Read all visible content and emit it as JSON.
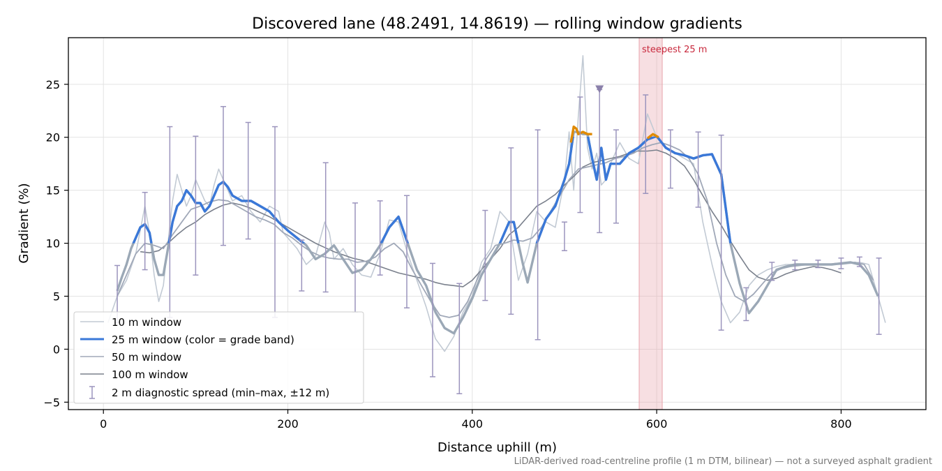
{
  "chart_data": {
    "type": "line",
    "title": "Discovered lane (48.2491, 14.8619) — rolling window gradients",
    "xlabel": "Distance uphill (m)",
    "ylabel": "Gradient (%)",
    "xlim": [
      -38,
      892
    ],
    "ylim": [
      -5.7,
      29.4
    ],
    "xticks": [
      0,
      200,
      400,
      600,
      800
    ],
    "yticks": [
      -5,
      0,
      5,
      10,
      15,
      20,
      25
    ],
    "ytick_labels": [
      "−5",
      "0",
      "5",
      "10",
      "15",
      "20",
      "25"
    ],
    "grid": true,
    "legend_position": "lower-left",
    "footnote": "LiDAR-derived road-centreline profile (1 m DTM, bilinear) — not a surveyed asphalt gradient",
    "colors": {
      "w10": "#c2cad4",
      "w25_base": "#9ba8b6",
      "w25_blue": "#3a78d8",
      "w25_orange": "#e08a00",
      "w50": "#a0a8b8",
      "w100": "#7a808c",
      "diag": "#9b94bd",
      "steep": "#e8a4ab",
      "steep_text": "#c8283c",
      "marker": "#8a80aa"
    },
    "steepest_25m": {
      "label": "steepest 25 m",
      "x_start": 581,
      "x_end": 606
    },
    "max_marker": {
      "x": 538,
      "y": 24.5
    },
    "series": [
      {
        "name": "10 m window",
        "x": [
          5,
          15,
          25,
          35,
          45,
          50,
          55,
          60,
          65,
          70,
          75,
          80,
          85,
          90,
          95,
          100,
          105,
          110,
          115,
          120,
          125,
          130,
          135,
          140,
          150,
          160,
          170,
          180,
          190,
          195,
          200,
          210,
          220,
          230,
          240,
          245,
          250,
          255,
          260,
          270,
          280,
          290,
          300,
          310,
          320,
          330,
          340,
          350,
          360,
          370,
          380,
          390,
          400,
          410,
          420,
          430,
          440,
          450,
          460,
          470,
          480,
          490,
          500,
          505,
          510,
          515,
          520,
          525,
          530,
          535,
          540,
          545,
          550,
          560,
          570,
          580,
          590,
          600,
          610,
          620,
          630,
          640,
          650,
          660,
          670,
          680,
          690,
          700,
          710,
          720,
          730,
          740,
          750,
          760,
          770,
          780,
          790,
          800,
          810,
          820,
          830,
          840,
          848
        ],
        "y": [
          2.5,
          5,
          6.5,
          9,
          13.5,
          11,
          7,
          4.5,
          6,
          10,
          14,
          16.5,
          15,
          13.5,
          14.5,
          16,
          15,
          14,
          13.5,
          15.5,
          17,
          16,
          15,
          14,
          14.5,
          13,
          12,
          13.5,
          13,
          11,
          10.5,
          9.5,
          8,
          8.8,
          12,
          11,
          8.5,
          9,
          9.5,
          8,
          7,
          6.8,
          9,
          12.2,
          12,
          9,
          6.5,
          4,
          1,
          -0.2,
          1.2,
          3.5,
          5,
          8.2,
          9.5,
          13,
          12,
          6.5,
          9,
          13,
          12,
          11.5,
          16,
          20.5,
          15,
          22,
          27.7,
          19,
          17,
          18.5,
          15.5,
          16,
          17.5,
          19.5,
          18,
          17.5,
          22.2,
          20,
          19,
          18.5,
          18,
          17.5,
          12,
          8,
          4.5,
          2.5,
          3.5,
          6,
          7,
          7.5,
          7.8,
          8,
          8,
          8,
          8,
          8,
          8,
          8,
          8.1,
          8.2,
          8,
          5,
          2.5
        ]
      },
      {
        "name": "25 m window (color = grade band)",
        "x": [
          15,
          20,
          25,
          30,
          35,
          40,
          45,
          50,
          55,
          60,
          65,
          70,
          75,
          80,
          85,
          90,
          95,
          100,
          105,
          110,
          115,
          120,
          125,
          130,
          135,
          140,
          150,
          160,
          170,
          180,
          190,
          200,
          210,
          220,
          230,
          240,
          250,
          260,
          270,
          280,
          290,
          300,
          310,
          320,
          330,
          340,
          350,
          360,
          370,
          380,
          390,
          400,
          410,
          420,
          430,
          440,
          445,
          450,
          455,
          460,
          470,
          480,
          490,
          500,
          505,
          510,
          515,
          520,
          525,
          530,
          535,
          540,
          545,
          550,
          560,
          570,
          580,
          590,
          600,
          610,
          620,
          630,
          640,
          650,
          660,
          670,
          680,
          690,
          700,
          710,
          720,
          730,
          740,
          750,
          760,
          770,
          780,
          790,
          800,
          810,
          820,
          830,
          840
        ],
        "y": [
          5.5,
          6.8,
          8,
          9.5,
          10.5,
          11.5,
          11.8,
          11,
          8.5,
          7,
          7,
          9.5,
          12,
          13.5,
          14,
          15,
          14.5,
          13.8,
          13.8,
          13,
          13.5,
          14.5,
          15.5,
          15.8,
          15.3,
          14.5,
          14,
          14,
          13.5,
          13,
          12,
          11.2,
          10.5,
          9.8,
          8.5,
          9,
          9.8,
          8.5,
          7.2,
          7.5,
          8.5,
          9.8,
          11.5,
          12.5,
          10,
          7.5,
          6,
          3.5,
          2,
          1.5,
          3,
          4.8,
          7,
          8.5,
          10,
          12,
          12,
          10,
          8,
          6.3,
          10,
          12.3,
          13.5,
          16,
          17.5,
          20.5,
          20.5,
          20.3,
          20.3,
          18,
          16,
          19,
          16,
          17.5,
          17.5,
          18.5,
          19,
          19.8,
          20.1,
          19,
          18.5,
          18.3,
          18,
          18.3,
          18.4,
          16.5,
          10,
          6.2,
          3.4,
          4.5,
          6,
          7.5,
          7.8,
          8,
          8,
          8,
          8,
          8,
          8.1,
          8.2,
          8,
          7,
          5
        ]
      },
      {
        "name": "50 m window",
        "x": [
          15,
          25,
          35,
          45,
          55,
          65,
          75,
          85,
          95,
          105,
          115,
          125,
          135,
          145,
          155,
          165,
          175,
          185,
          195,
          205,
          215,
          225,
          235,
          245,
          255,
          265,
          275,
          285,
          295,
          305,
          315,
          325,
          335,
          345,
          355,
          365,
          375,
          385,
          395,
          405,
          415,
          425,
          435,
          445,
          455,
          465,
          475,
          485,
          495,
          505,
          515,
          525,
          535,
          545,
          555,
          565,
          575,
          585,
          595,
          605,
          615,
          625,
          635,
          645,
          655,
          665,
          675,
          685,
          695,
          705,
          715,
          725,
          735,
          745,
          755,
          765,
          775,
          785,
          795,
          805,
          815,
          825,
          835
        ],
        "y": [
          5,
          7,
          9,
          10,
          9.8,
          9.5,
          10.8,
          12,
          13.2,
          13.5,
          13.9,
          14.1,
          14,
          13.5,
          13,
          12.5,
          12.2,
          11.8,
          11,
          10.5,
          9.8,
          9.2,
          8.8,
          8.6,
          8.5,
          8.5,
          8.2,
          8.3,
          8.7,
          9.5,
          10,
          9.2,
          7.5,
          6,
          4.5,
          3.2,
          3,
          3.2,
          4.5,
          6.5,
          8.5,
          9.8,
          10,
          10.3,
          10.2,
          10.5,
          11.5,
          13,
          14.5,
          16,
          17,
          17.2,
          17.4,
          17.6,
          18,
          18.2,
          18.5,
          19,
          19.3,
          19.5,
          19.2,
          18.8,
          18,
          16.5,
          14,
          10,
          7,
          5,
          4.5,
          5.2,
          6.2,
          7.2,
          7.6,
          7.8,
          7.9,
          8,
          8,
          8,
          8.1,
          8.1,
          8.2,
          8,
          6.5
        ]
      },
      {
        "name": "100 m window",
        "x": [
          40,
          50,
          60,
          70,
          80,
          90,
          100,
          110,
          120,
          130,
          140,
          150,
          160,
          170,
          180,
          190,
          200,
          210,
          220,
          230,
          240,
          250,
          260,
          270,
          280,
          290,
          300,
          310,
          320,
          330,
          340,
          350,
          360,
          370,
          380,
          390,
          400,
          410,
          420,
          430,
          440,
          450,
          460,
          470,
          480,
          490,
          500,
          510,
          520,
          530,
          540,
          550,
          560,
          570,
          580,
          590,
          600,
          610,
          620,
          630,
          640,
          650,
          660,
          670,
          680,
          690,
          700,
          710,
          720,
          730,
          740,
          750,
          760,
          770,
          780,
          790,
          800
        ],
        "y": [
          9.2,
          9.1,
          9.3,
          10,
          10.8,
          11.5,
          12,
          12.7,
          13.2,
          13.6,
          13.8,
          13.6,
          13.3,
          12.9,
          12.5,
          12,
          11.5,
          11,
          10.5,
          10,
          9.6,
          9.2,
          8.9,
          8.6,
          8.4,
          8.1,
          7.8,
          7.5,
          7.2,
          7,
          6.8,
          6.6,
          6.3,
          6.1,
          6,
          5.9,
          6.5,
          7.5,
          8.5,
          9.5,
          10.8,
          11.5,
          12.5,
          13.5,
          14,
          14.6,
          15.5,
          16.3,
          17.2,
          17.6,
          17.8,
          18,
          18.2,
          18.5,
          18.7,
          18.7,
          18.8,
          18.5,
          18,
          17.3,
          16,
          14.5,
          13,
          11.7,
          10.2,
          8.8,
          7.5,
          6.8,
          6.5,
          6.7,
          7.1,
          7.4,
          7.6,
          7.8,
          7.7,
          7.5,
          7.2
        ]
      }
    ],
    "orange_segments": [
      {
        "x": [
          507,
          510,
          513,
          515,
          520,
          525,
          530
        ],
        "y": [
          19.5,
          21,
          20.8,
          20.3,
          20.5,
          20.3,
          20.3
        ]
      },
      {
        "x": [
          590,
          593,
          596,
          600,
          602
        ],
        "y": [
          19.9,
          20.1,
          20.3,
          20.1,
          20.0
        ]
      }
    ],
    "diagnostic_spread": {
      "name": "2 m diagnostic spread (min–max, ±12 m)",
      "x": [
        15,
        45,
        72,
        100,
        130,
        157,
        186,
        215,
        241,
        273,
        300,
        329,
        357,
        386,
        414,
        442,
        471,
        500,
        517,
        538,
        556,
        588,
        615,
        645,
        670,
        697,
        725,
        750,
        775,
        800,
        820,
        841
      ],
      "min": [
        2.5,
        7.5,
        3,
        7,
        9.8,
        10.4,
        3,
        5.5,
        5.4,
        3.5,
        7,
        3.9,
        -2.6,
        -4.2,
        4.6,
        3.3,
        0.9,
        9.3,
        12.9,
        11,
        11.9,
        14.7,
        15.2,
        13.4,
        1.8,
        2.7,
        6.5,
        7.5,
        7.7,
        7.6,
        7.8,
        1.4
      ],
      "max": [
        7.9,
        14.8,
        21,
        20.1,
        22.9,
        21.4,
        21,
        10.3,
        17.6,
        13.8,
        14,
        14.5,
        8.1,
        6.2,
        13.1,
        19,
        20.7,
        12,
        23.8,
        24.5,
        20.7,
        24,
        20.7,
        20.5,
        20.2,
        5.8,
        8.2,
        8.4,
        8.4,
        8.6,
        8.7,
        8.6
      ]
    }
  }
}
